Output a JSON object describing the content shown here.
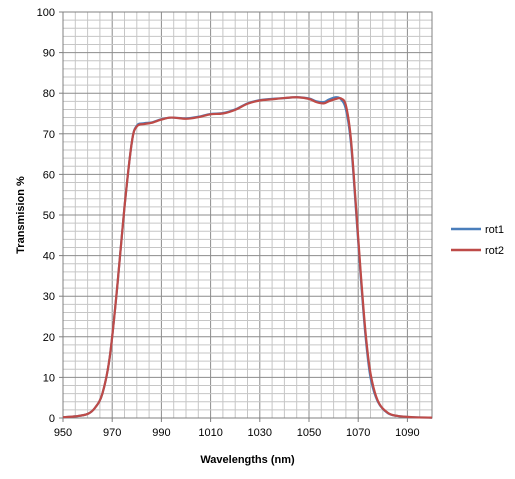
{
  "chart_data": {
    "type": "line",
    "title": "",
    "xlabel": "Wavelengths (nm)",
    "ylabel": "Transmision %",
    "xlim": [
      950,
      1100
    ],
    "ylim": [
      0,
      100
    ],
    "x_ticks": [
      950,
      970,
      990,
      1010,
      1030,
      1050,
      1070,
      1090
    ],
    "y_ticks": [
      0,
      10,
      20,
      30,
      40,
      50,
      60,
      70,
      80,
      90,
      100
    ],
    "x_tick_labels": [
      "950",
      "970",
      "990",
      "1010",
      "1030",
      "1050",
      "1070",
      "1090"
    ],
    "y_tick_labels": [
      "0",
      "10",
      "20",
      "30",
      "40",
      "50",
      "60",
      "70",
      "80",
      "90",
      "100"
    ],
    "grid": true,
    "legend_position": "right",
    "series": [
      {
        "name": "rot1",
        "color": "#4a7ebb",
        "points": [
          [
            950,
            0.2
          ],
          [
            955,
            0.4
          ],
          [
            960,
            1
          ],
          [
            963,
            2.5
          ],
          [
            966,
            6
          ],
          [
            969,
            15
          ],
          [
            972,
            32
          ],
          [
            975,
            52
          ],
          [
            978,
            68
          ],
          [
            980,
            72
          ],
          [
            983,
            72.6
          ],
          [
            986,
            72.8
          ],
          [
            990,
            73.6
          ],
          [
            994,
            74
          ],
          [
            1000,
            73.8
          ],
          [
            1005,
            74.2
          ],
          [
            1010,
            74.9
          ],
          [
            1015,
            75.1
          ],
          [
            1020,
            76
          ],
          [
            1025,
            77.5
          ],
          [
            1030,
            78.3
          ],
          [
            1035,
            78.6
          ],
          [
            1040,
            78.8
          ],
          [
            1045,
            79
          ],
          [
            1050,
            78.7
          ],
          [
            1053,
            78
          ],
          [
            1056,
            77.8
          ],
          [
            1058,
            78.4
          ],
          [
            1061,
            79
          ],
          [
            1063,
            78.5
          ],
          [
            1065,
            76
          ],
          [
            1067,
            68
          ],
          [
            1069,
            52
          ],
          [
            1071,
            35
          ],
          [
            1073,
            20
          ],
          [
            1075,
            10
          ],
          [
            1078,
            4
          ],
          [
            1082,
            1.2
          ],
          [
            1086,
            0.5
          ],
          [
            1092,
            0.2
          ],
          [
            1100,
            0.1
          ]
        ]
      },
      {
        "name": "rot2",
        "color": "#be4b48",
        "points": [
          [
            950,
            0.2
          ],
          [
            955,
            0.4
          ],
          [
            960,
            1
          ],
          [
            963,
            2.5
          ],
          [
            966,
            6
          ],
          [
            969,
            15
          ],
          [
            972,
            32
          ],
          [
            975,
            52
          ],
          [
            978,
            68
          ],
          [
            980,
            71.8
          ],
          [
            983,
            72.4
          ],
          [
            986,
            72.7
          ],
          [
            990,
            73.5
          ],
          [
            994,
            74
          ],
          [
            1000,
            73.7
          ],
          [
            1005,
            74.1
          ],
          [
            1010,
            74.8
          ],
          [
            1015,
            75
          ],
          [
            1020,
            75.9
          ],
          [
            1025,
            77.4
          ],
          [
            1030,
            78.2
          ],
          [
            1035,
            78.5
          ],
          [
            1040,
            78.8
          ],
          [
            1045,
            79
          ],
          [
            1050,
            78.6
          ],
          [
            1053,
            77.8
          ],
          [
            1056,
            77.5
          ],
          [
            1058,
            78
          ],
          [
            1061,
            78.6
          ],
          [
            1063,
            78.7
          ],
          [
            1065,
            77
          ],
          [
            1067,
            69
          ],
          [
            1069,
            53
          ],
          [
            1071,
            36
          ],
          [
            1073,
            21
          ],
          [
            1075,
            11
          ],
          [
            1078,
            4.2
          ],
          [
            1082,
            1.3
          ],
          [
            1086,
            0.5
          ],
          [
            1092,
            0.2
          ],
          [
            1100,
            0.1
          ]
        ]
      }
    ]
  }
}
